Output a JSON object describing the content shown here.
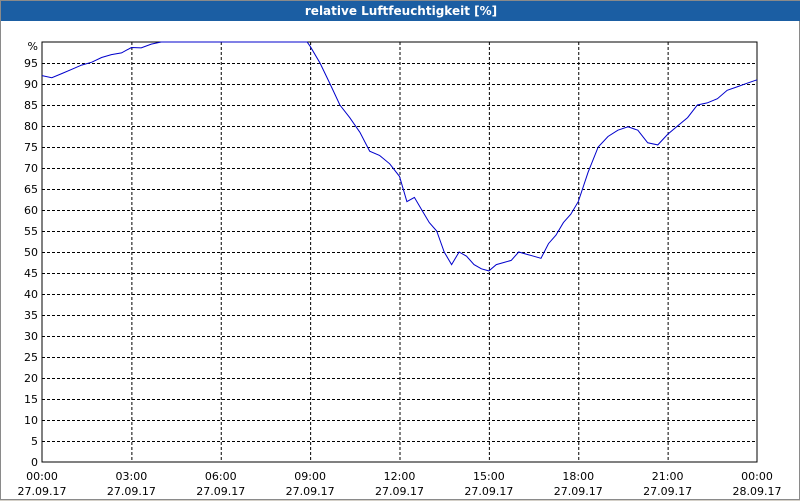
{
  "window": {
    "title": "relative Luftfeuchtigkeit [%]"
  },
  "colors": {
    "titlebar": "#1b5ea3",
    "series": "#0000cc",
    "grid": "#000000",
    "background": "#ffffff"
  },
  "chart_data": {
    "type": "line",
    "title": "relative Luftfeuchtigkeit [%]",
    "ylabel": "%",
    "xlabel": "",
    "ylim": [
      0,
      100
    ],
    "yticks": [
      0,
      5,
      10,
      15,
      20,
      25,
      30,
      35,
      40,
      45,
      50,
      55,
      60,
      65,
      70,
      75,
      80,
      85,
      90,
      95
    ],
    "xlim": [
      "27.09.17 00:00",
      "28.09.17 00:00"
    ],
    "xticks": [
      {
        "time": "00:00",
        "date": "27.09.17",
        "hour": 0
      },
      {
        "time": "03:00",
        "date": "27.09.17",
        "hour": 3
      },
      {
        "time": "06:00",
        "date": "27.09.17",
        "hour": 6
      },
      {
        "time": "09:00",
        "date": "27.09.17",
        "hour": 9
      },
      {
        "time": "12:00",
        "date": "27.09.17",
        "hour": 12
      },
      {
        "time": "15:00",
        "date": "27.09.17",
        "hour": 15
      },
      {
        "time": "18:00",
        "date": "27.09.17",
        "hour": 18
      },
      {
        "time": "21:00",
        "date": "27.09.17",
        "hour": 21
      },
      {
        "time": "00:00",
        "date": "28.09.17",
        "hour": 24
      }
    ],
    "grid": true,
    "series": [
      {
        "points": [
          [
            0.0,
            92
          ],
          [
            0.33,
            91.5
          ],
          [
            0.67,
            92.5
          ],
          [
            1.0,
            93.5
          ],
          [
            1.33,
            94.5
          ],
          [
            1.67,
            95.2
          ],
          [
            2.0,
            96.3
          ],
          [
            2.33,
            97
          ],
          [
            2.67,
            97.4
          ],
          [
            3.0,
            98.7
          ],
          [
            3.33,
            98.6
          ],
          [
            3.67,
            99.5
          ],
          [
            4.0,
            100
          ],
          [
            4.5,
            100
          ],
          [
            5.0,
            100
          ],
          [
            5.5,
            100
          ],
          [
            6.0,
            100
          ],
          [
            7.0,
            100
          ],
          [
            8.0,
            100
          ],
          [
            8.9,
            100
          ],
          [
            9.0,
            99
          ],
          [
            9.33,
            95
          ],
          [
            9.67,
            90
          ],
          [
            10.0,
            85
          ],
          [
            10.33,
            82
          ],
          [
            10.67,
            78.5
          ],
          [
            11.0,
            74
          ],
          [
            11.33,
            73
          ],
          [
            11.67,
            71
          ],
          [
            12.0,
            68
          ],
          [
            12.25,
            62
          ],
          [
            12.5,
            63
          ],
          [
            12.75,
            60
          ],
          [
            13.0,
            57
          ],
          [
            13.25,
            55
          ],
          [
            13.5,
            50
          ],
          [
            13.75,
            47
          ],
          [
            14.0,
            50
          ],
          [
            14.25,
            49
          ],
          [
            14.5,
            47
          ],
          [
            14.75,
            46
          ],
          [
            15.0,
            45.5
          ],
          [
            15.25,
            47
          ],
          [
            15.5,
            47.5
          ],
          [
            15.75,
            48
          ],
          [
            16.0,
            50
          ],
          [
            16.25,
            49.5
          ],
          [
            16.5,
            49
          ],
          [
            16.75,
            48.5
          ],
          [
            17.0,
            52
          ],
          [
            17.25,
            54
          ],
          [
            17.5,
            57
          ],
          [
            17.75,
            59
          ],
          [
            18.0,
            62
          ],
          [
            18.33,
            69
          ],
          [
            18.67,
            75
          ],
          [
            19.0,
            77.5
          ],
          [
            19.33,
            79
          ],
          [
            19.67,
            79.8
          ],
          [
            20.0,
            79
          ],
          [
            20.33,
            76
          ],
          [
            20.67,
            75.5
          ],
          [
            21.0,
            78
          ],
          [
            21.33,
            80
          ],
          [
            21.67,
            82
          ],
          [
            22.0,
            85
          ],
          [
            22.33,
            85.5
          ],
          [
            22.67,
            86.5
          ],
          [
            23.0,
            88.5
          ],
          [
            23.33,
            89.3
          ],
          [
            23.67,
            90.2
          ],
          [
            24.0,
            91
          ]
        ]
      }
    ]
  }
}
